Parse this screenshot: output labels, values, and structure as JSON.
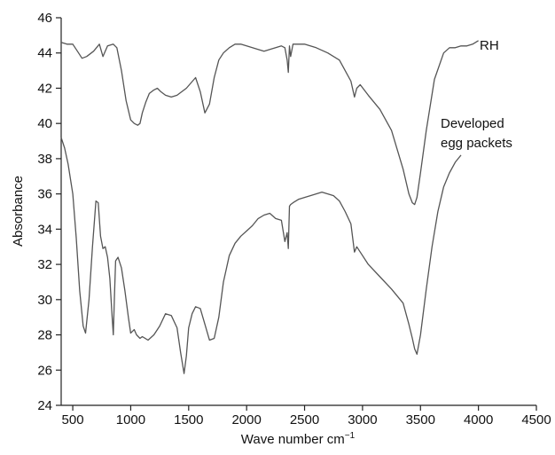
{
  "chart_data": {
    "type": "line",
    "title": "",
    "xlabel": "Wave number cm",
    "xlabel_superscript": "−1",
    "ylabel": "Absorbance",
    "xlim": [
      400,
      4500
    ],
    "ylim": [
      24,
      46
    ],
    "xticks": [
      500,
      1000,
      1500,
      2000,
      2500,
      3000,
      3500,
      4000,
      4500
    ],
    "yticks": [
      24,
      26,
      28,
      30,
      32,
      34,
      36,
      38,
      40,
      42,
      44,
      46
    ],
    "grid": false,
    "legend": "none",
    "line_color": "#555555",
    "series": [
      {
        "name": "RH",
        "x": [
          400,
          450,
          500,
          550,
          580,
          620,
          680,
          730,
          760,
          800,
          850,
          880,
          920,
          960,
          1000,
          1030,
          1060,
          1080,
          1100,
          1130,
          1160,
          1200,
          1230,
          1260,
          1300,
          1350,
          1400,
          1440,
          1480,
          1520,
          1560,
          1600,
          1640,
          1680,
          1720,
          1760,
          1800,
          1850,
          1900,
          1950,
          2000,
          2050,
          2100,
          2150,
          2200,
          2250,
          2300,
          2330,
          2350,
          2360,
          2370,
          2380,
          2400,
          2450,
          2500,
          2600,
          2700,
          2800,
          2850,
          2900,
          2930,
          2950,
          2980,
          3050,
          3150,
          3250,
          3350,
          3400,
          3430,
          3450,
          3470,
          3500,
          3550,
          3620,
          3700,
          3750,
          3800,
          3850,
          3900,
          3950,
          4000
        ],
        "y": [
          44.6,
          44.5,
          44.5,
          44.0,
          43.7,
          43.8,
          44.1,
          44.5,
          43.8,
          44.4,
          44.5,
          44.3,
          43.0,
          41.3,
          40.2,
          40.0,
          39.9,
          40.0,
          40.6,
          41.2,
          41.7,
          41.9,
          42.0,
          41.8,
          41.6,
          41.5,
          41.6,
          41.8,
          42.0,
          42.3,
          42.6,
          41.8,
          40.6,
          41.1,
          42.6,
          43.6,
          44.0,
          44.3,
          44.5,
          44.5,
          44.4,
          44.3,
          44.2,
          44.1,
          44.2,
          44.3,
          44.4,
          44.3,
          43.6,
          42.9,
          44.4,
          43.8,
          44.5,
          44.5,
          44.5,
          44.3,
          44.0,
          43.6,
          43.0,
          42.4,
          41.5,
          42.0,
          42.2,
          41.6,
          40.8,
          39.6,
          37.4,
          36.0,
          35.5,
          35.4,
          35.8,
          37.2,
          39.6,
          42.5,
          44.0,
          44.3,
          44.3,
          44.4,
          44.4,
          44.5,
          44.7
        ]
      },
      {
        "name": "Developed egg packets",
        "x": [
          400,
          430,
          460,
          500,
          530,
          560,
          590,
          610,
          640,
          670,
          700,
          720,
          740,
          760,
          780,
          800,
          820,
          840,
          850,
          860,
          870,
          890,
          920,
          950,
          980,
          1000,
          1030,
          1050,
          1080,
          1100,
          1150,
          1200,
          1250,
          1300,
          1350,
          1400,
          1430,
          1460,
          1480,
          1500,
          1530,
          1560,
          1600,
          1640,
          1680,
          1720,
          1760,
          1800,
          1850,
          1900,
          1950,
          2000,
          2050,
          2100,
          2150,
          2200,
          2250,
          2300,
          2330,
          2350,
          2360,
          2370,
          2380,
          2400,
          2450,
          2500,
          2550,
          2600,
          2650,
          2700,
          2750,
          2800,
          2850,
          2900,
          2930,
          2950,
          2980,
          3050,
          3150,
          3250,
          3300,
          3350,
          3400,
          3430,
          3450,
          3470,
          3500,
          3550,
          3600,
          3650,
          3700,
          3750,
          3800,
          3850
        ],
        "y": [
          39.2,
          38.6,
          37.7,
          36.0,
          33.5,
          30.5,
          28.5,
          28.1,
          30.0,
          33.0,
          35.6,
          35.5,
          33.6,
          32.9,
          33.0,
          32.4,
          31.2,
          29.0,
          28.0,
          30.2,
          32.2,
          32.4,
          31.8,
          30.5,
          29.0,
          28.1,
          28.3,
          28.0,
          27.8,
          27.9,
          27.7,
          28.0,
          28.5,
          29.2,
          29.1,
          28.4,
          27.0,
          25.8,
          26.8,
          28.4,
          29.2,
          29.6,
          29.5,
          28.6,
          27.7,
          27.8,
          29.0,
          31.0,
          32.5,
          33.2,
          33.6,
          33.9,
          34.2,
          34.6,
          34.8,
          34.9,
          34.6,
          34.5,
          33.3,
          33.8,
          32.9,
          35.3,
          35.4,
          35.5,
          35.7,
          35.8,
          35.9,
          36.0,
          36.1,
          36.0,
          35.9,
          35.6,
          35.0,
          34.3,
          32.7,
          33.0,
          32.7,
          32.0,
          31.3,
          30.6,
          30.2,
          29.8,
          28.6,
          27.8,
          27.2,
          26.9,
          28.0,
          30.6,
          33.0,
          35.0,
          36.4,
          37.2,
          37.8,
          38.2
        ]
      }
    ]
  },
  "labels": {
    "rh": "RH",
    "developed_line1": "Developed",
    "developed_line2": "egg packets"
  }
}
